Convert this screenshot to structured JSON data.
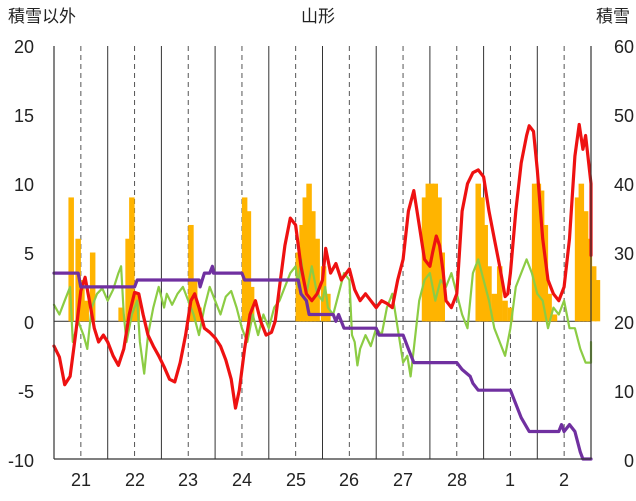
{
  "chart_data": {
    "type": "line",
    "title": "山形",
    "ylabel_left": "積雪以外",
    "ylabel_right": "積雪",
    "y_left": {
      "range": [
        -10,
        20
      ],
      "ticks": [
        "20",
        "15",
        "10",
        "5",
        "0",
        "-5",
        "-10"
      ]
    },
    "y_right": {
      "range": [
        0,
        60
      ],
      "ticks": [
        "60",
        "50",
        "40",
        "30",
        "20",
        "10",
        "0"
      ]
    },
    "x": {
      "range": [
        0,
        10
      ],
      "ticks": [
        "21",
        "22",
        "23",
        "24",
        "25",
        "26",
        "27",
        "28",
        "1",
        "2"
      ]
    },
    "grid": "vertical dashed lines at day boundaries and mid-days; solid horizontal zero line",
    "colors": {
      "precipitation": "#ffb400",
      "temperature": "#ee1111",
      "wind": "#8ccc44",
      "snow_depth": "#7030a0"
    },
    "series": [
      {
        "key": "temperature",
        "axis": "left",
        "points": [
          [
            0.0,
            -1.8
          ],
          [
            0.1,
            -2.6
          ],
          [
            0.2,
            -4.6
          ],
          [
            0.3,
            -4.0
          ],
          [
            0.4,
            -1.0
          ],
          [
            0.5,
            2.2
          ],
          [
            0.58,
            3.2
          ],
          [
            0.66,
            1.5
          ],
          [
            0.75,
            -0.5
          ],
          [
            0.83,
            -1.5
          ],
          [
            0.92,
            -1.0
          ],
          [
            1.0,
            -1.5
          ],
          [
            1.1,
            -2.5
          ],
          [
            1.2,
            -3.2
          ],
          [
            1.3,
            -2.0
          ],
          [
            1.4,
            0.5
          ],
          [
            1.5,
            2.1
          ],
          [
            1.58,
            2.0
          ],
          [
            1.66,
            0.5
          ],
          [
            1.75,
            -1.0
          ],
          [
            1.85,
            -1.8
          ],
          [
            1.95,
            -2.5
          ],
          [
            2.05,
            -3.3
          ],
          [
            2.15,
            -4.2
          ],
          [
            2.25,
            -4.4
          ],
          [
            2.35,
            -3.0
          ],
          [
            2.45,
            -1.0
          ],
          [
            2.55,
            1.5
          ],
          [
            2.62,
            2.0
          ],
          [
            2.7,
            1.0
          ],
          [
            2.8,
            -0.5
          ],
          [
            2.9,
            -0.8
          ],
          [
            3.0,
            -1.2
          ],
          [
            3.1,
            -1.8
          ],
          [
            3.2,
            -2.8
          ],
          [
            3.3,
            -4.2
          ],
          [
            3.38,
            -6.3
          ],
          [
            3.45,
            -5.0
          ],
          [
            3.55,
            -2.0
          ],
          [
            3.65,
            0.5
          ],
          [
            3.75,
            1.5
          ],
          [
            3.85,
            0.0
          ],
          [
            3.95,
            -1.0
          ],
          [
            4.05,
            -0.8
          ],
          [
            4.12,
            0.0
          ],
          [
            4.2,
            2.5
          ],
          [
            4.3,
            5.5
          ],
          [
            4.4,
            7.5
          ],
          [
            4.5,
            7.0
          ],
          [
            4.6,
            4.0
          ],
          [
            4.7,
            2.0
          ],
          [
            4.8,
            1.5
          ],
          [
            4.9,
            2.0
          ],
          [
            5.0,
            3.0
          ],
          [
            5.06,
            5.3
          ],
          [
            5.15,
            3.5
          ],
          [
            5.25,
            4.2
          ],
          [
            5.35,
            3.0
          ],
          [
            5.5,
            3.8
          ],
          [
            5.6,
            2.3
          ],
          [
            5.7,
            1.5
          ],
          [
            5.8,
            2.0
          ],
          [
            5.9,
            1.5
          ],
          [
            6.0,
            1.0
          ],
          [
            6.1,
            1.5
          ],
          [
            6.2,
            1.3
          ],
          [
            6.3,
            1.0
          ],
          [
            6.4,
            3.0
          ],
          [
            6.5,
            4.5
          ],
          [
            6.6,
            8.0
          ],
          [
            6.7,
            9.5
          ],
          [
            6.8,
            7.0
          ],
          [
            6.9,
            4.5
          ],
          [
            7.0,
            4.0
          ],
          [
            7.05,
            5.0
          ],
          [
            7.12,
            6.2
          ],
          [
            7.18,
            5.5
          ],
          [
            7.25,
            3.5
          ],
          [
            7.3,
            1.5
          ],
          [
            7.4,
            1.0
          ],
          [
            7.5,
            2.0
          ],
          [
            7.6,
            8.0
          ],
          [
            7.7,
            10.0
          ],
          [
            7.8,
            10.8
          ],
          [
            7.9,
            11.0
          ],
          [
            8.0,
            10.5
          ],
          [
            8.1,
            8.0
          ],
          [
            8.2,
            6.0
          ],
          [
            8.3,
            4.0
          ],
          [
            8.4,
            1.8
          ],
          [
            8.45,
            2.0
          ],
          [
            8.5,
            3.5
          ],
          [
            8.6,
            8.0
          ],
          [
            8.7,
            11.5
          ],
          [
            8.8,
            13.5
          ],
          [
            8.85,
            14.2
          ],
          [
            8.93,
            13.8
          ],
          [
            9.0,
            11.0
          ],
          [
            9.1,
            6.0
          ],
          [
            9.2,
            3.0
          ],
          [
            9.3,
            2.0
          ],
          [
            9.4,
            1.5
          ],
          [
            9.5,
            2.5
          ],
          [
            9.6,
            6.0
          ],
          [
            9.7,
            12.0
          ],
          [
            9.78,
            14.3
          ],
          [
            9.85,
            12.5
          ],
          [
            9.9,
            13.5
          ],
          [
            10.0,
            10.0
          ],
          [
            10.1,
            6.5
          ],
          [
            10.2,
            5.0
          ],
          [
            10.3,
            4.8
          ]
        ]
      },
      {
        "key": "wind",
        "axis": "left",
        "points": [
          [
            0.0,
            1.2
          ],
          [
            0.1,
            0.5
          ],
          [
            0.2,
            1.5
          ],
          [
            0.3,
            2.5
          ],
          [
            0.35,
            -1.5
          ],
          [
            0.45,
            0.0
          ],
          [
            0.55,
            -1.0
          ],
          [
            0.62,
            -2.0
          ],
          [
            0.7,
            1.0
          ],
          [
            0.8,
            2.0
          ],
          [
            0.9,
            2.4
          ],
          [
            1.0,
            1.5
          ],
          [
            1.1,
            2.3
          ],
          [
            1.2,
            3.5
          ],
          [
            1.25,
            4.0
          ],
          [
            1.3,
            0.5
          ],
          [
            1.35,
            -1.5
          ],
          [
            1.45,
            0.5
          ],
          [
            1.55,
            1.5
          ],
          [
            1.6,
            -1.5
          ],
          [
            1.68,
            -3.8
          ],
          [
            1.75,
            -1.0
          ],
          [
            1.85,
            1.0
          ],
          [
            1.95,
            2.5
          ],
          [
            2.05,
            1.0
          ],
          [
            2.1,
            2.0
          ],
          [
            2.2,
            1.2
          ],
          [
            2.3,
            2.0
          ],
          [
            2.4,
            2.5
          ],
          [
            2.5,
            1.5
          ],
          [
            2.6,
            0.5
          ],
          [
            2.7,
            -1.0
          ],
          [
            2.8,
            1.0
          ],
          [
            2.9,
            2.5
          ],
          [
            3.0,
            1.5
          ],
          [
            3.1,
            0.5
          ],
          [
            3.2,
            1.8
          ],
          [
            3.3,
            2.2
          ],
          [
            3.4,
            1.0
          ],
          [
            3.5,
            -0.5
          ],
          [
            3.6,
            -1.5
          ],
          [
            3.7,
            0.5
          ],
          [
            3.8,
            -1.0
          ],
          [
            3.9,
            0.5
          ],
          [
            4.0,
            -0.5
          ],
          [
            4.1,
            1.0
          ],
          [
            4.2,
            1.5
          ],
          [
            4.3,
            2.5
          ],
          [
            4.4,
            3.5
          ],
          [
            4.5,
            4.0
          ],
          [
            4.55,
            2.5
          ],
          [
            4.6,
            4.5
          ],
          [
            4.7,
            2.0
          ],
          [
            4.8,
            4.0
          ],
          [
            4.9,
            2.0
          ],
          [
            5.0,
            1.5
          ],
          [
            5.05,
            2.5
          ],
          [
            5.1,
            1.0
          ],
          [
            5.2,
            0.5
          ],
          [
            5.3,
            2.0
          ],
          [
            5.4,
            3.5
          ],
          [
            5.5,
            3.0
          ],
          [
            5.55,
            -1.0
          ],
          [
            5.6,
            -1.5
          ],
          [
            5.65,
            -3.2
          ],
          [
            5.7,
            -2.0
          ],
          [
            5.8,
            -1.0
          ],
          [
            5.9,
            -1.8
          ],
          [
            6.0,
            -0.5
          ],
          [
            6.1,
            -1.0
          ],
          [
            6.2,
            1.0
          ],
          [
            6.3,
            2.0
          ],
          [
            6.4,
            -0.5
          ],
          [
            6.5,
            -3.0
          ],
          [
            6.58,
            -2.5
          ],
          [
            6.64,
            -4.0
          ],
          [
            6.7,
            -2.0
          ],
          [
            6.8,
            1.5
          ],
          [
            6.9,
            3.0
          ],
          [
            7.0,
            3.5
          ],
          [
            7.1,
            1.5
          ],
          [
            7.2,
            3.0
          ],
          [
            7.3,
            2.5
          ],
          [
            7.4,
            3.5
          ],
          [
            7.5,
            2.0
          ],
          [
            7.6,
            0.5
          ],
          [
            7.7,
            -0.5
          ],
          [
            7.8,
            3.5
          ],
          [
            7.9,
            4.5
          ],
          [
            8.0,
            3.0
          ],
          [
            8.1,
            1.5
          ],
          [
            8.2,
            -0.5
          ],
          [
            8.3,
            -1.5
          ],
          [
            8.4,
            -2.5
          ],
          [
            8.5,
            -0.5
          ],
          [
            8.6,
            2.5
          ],
          [
            8.7,
            3.5
          ],
          [
            8.8,
            4.5
          ],
          [
            8.9,
            3.5
          ],
          [
            9.0,
            2.0
          ],
          [
            9.1,
            1.5
          ],
          [
            9.2,
            -0.5
          ],
          [
            9.3,
            1.0
          ],
          [
            9.4,
            0.5
          ],
          [
            9.5,
            1.5
          ],
          [
            9.6,
            -0.5
          ],
          [
            9.7,
            -0.5
          ],
          [
            9.8,
            -2.0
          ],
          [
            9.9,
            -3.0
          ],
          [
            10.0,
            -3.0
          ],
          [
            10.1,
            -2.0
          ],
          [
            10.2,
            -2.2
          ],
          [
            10.3,
            -1.5
          ]
        ]
      },
      {
        "key": "snow_depth",
        "axis": "right",
        "points": [
          [
            -0.5,
            27
          ],
          [
            0.45,
            27
          ],
          [
            0.5,
            25
          ],
          [
            1.5,
            25
          ],
          [
            1.55,
            26
          ],
          [
            2.7,
            26
          ],
          [
            2.72,
            25
          ],
          [
            2.8,
            27
          ],
          [
            2.9,
            27
          ],
          [
            2.95,
            28
          ],
          [
            2.97,
            27
          ],
          [
            3.5,
            27
          ],
          [
            3.55,
            26
          ],
          [
            4.55,
            26
          ],
          [
            4.6,
            24
          ],
          [
            4.7,
            23
          ],
          [
            4.75,
            21
          ],
          [
            5.2,
            21
          ],
          [
            5.25,
            20
          ],
          [
            5.3,
            21
          ],
          [
            5.35,
            20
          ],
          [
            5.4,
            19
          ],
          [
            6.0,
            19
          ],
          [
            6.05,
            18
          ],
          [
            6.5,
            18
          ],
          [
            6.6,
            16
          ],
          [
            6.7,
            14
          ],
          [
            7.5,
            14
          ],
          [
            7.6,
            13
          ],
          [
            7.75,
            12
          ],
          [
            7.8,
            11
          ],
          [
            7.9,
            10
          ],
          [
            8.5,
            10
          ],
          [
            8.6,
            8
          ],
          [
            8.7,
            6
          ],
          [
            8.85,
            4
          ],
          [
            9.4,
            4
          ],
          [
            9.45,
            5
          ],
          [
            9.5,
            4
          ],
          [
            9.6,
            5
          ],
          [
            9.7,
            4
          ],
          [
            9.8,
            1
          ],
          [
            9.85,
            0
          ],
          [
            10.5,
            0
          ]
        ]
      }
    ],
    "bars": {
      "key": "precipitation",
      "axis": "left",
      "points": [
        [
          0.32,
          9.0
        ],
        [
          0.45,
          6.0
        ],
        [
          0.52,
          3.0
        ],
        [
          0.6,
          1.5
        ],
        [
          0.72,
          5.0
        ],
        [
          1.25,
          1.0
        ],
        [
          1.38,
          6.0
        ],
        [
          1.45,
          9.0
        ],
        [
          1.55,
          2.0
        ],
        [
          2.55,
          7.0
        ],
        [
          2.62,
          3.0
        ],
        [
          2.7,
          1.0
        ],
        [
          3.55,
          9.0
        ],
        [
          3.62,
          8.0
        ],
        [
          3.68,
          2.5
        ],
        [
          4.55,
          5.0
        ],
        [
          4.62,
          7.0
        ],
        [
          4.68,
          9.0
        ],
        [
          4.75,
          10.0
        ],
        [
          4.82,
          8.0
        ],
        [
          4.9,
          6.0
        ],
        [
          5.02,
          4.0
        ],
        [
          5.1,
          2.0
        ],
        [
          6.9,
          9.0
        ],
        [
          6.97,
          10.0
        ],
        [
          7.03,
          10.0
        ],
        [
          7.1,
          10.0
        ],
        [
          7.17,
          9.0
        ],
        [
          7.23,
          5.0
        ],
        [
          7.9,
          10.0
        ],
        [
          7.97,
          9.0
        ],
        [
          8.03,
          7.0
        ],
        [
          8.1,
          4.0
        ],
        [
          8.2,
          2.0
        ],
        [
          8.3,
          4.0
        ],
        [
          8.4,
          1.5
        ],
        [
          8.5,
          1.0
        ],
        [
          8.95,
          10.0
        ],
        [
          9.02,
          10.0
        ],
        [
          9.08,
          9.5
        ],
        [
          9.15,
          7.0
        ],
        [
          9.22,
          2.0
        ],
        [
          9.32,
          0.5
        ],
        [
          9.75,
          9.0
        ],
        [
          9.82,
          10.0
        ],
        [
          9.9,
          8.0
        ],
        [
          9.97,
          6.0
        ],
        [
          10.05,
          4.0
        ],
        [
          10.12,
          3.0
        ]
      ]
    }
  }
}
